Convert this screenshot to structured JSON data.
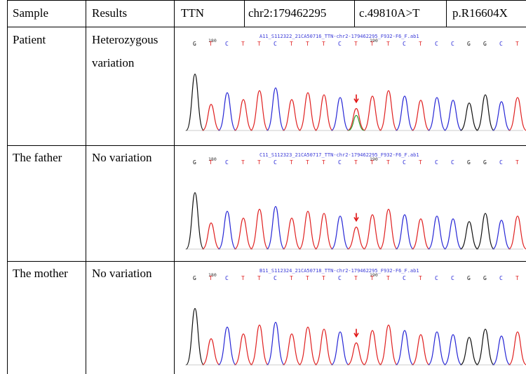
{
  "header": {
    "sample": "Sample",
    "results": "Results",
    "gene": "TTN",
    "locus": "chr2:179462295",
    "cdna": "c.49810A>T",
    "protein": "p.R16604X"
  },
  "rows": [
    {
      "sample": "Patient",
      "result_line1": "Heterozygous",
      "result_line2": "variation",
      "chromatogram": {
        "filename": "A11_S112322_21CA50716_TTN-chr2-179462295_F932-F6_F.ab1",
        "bases": [
          "G",
          "T",
          "C",
          "T",
          "T",
          "C",
          "T",
          "T",
          "T",
          "C",
          "T",
          "T",
          "T",
          "C",
          "T",
          "C",
          "C",
          "G",
          "G",
          "C",
          "T"
        ],
        "pos_labels": [
          "180",
          "190"
        ],
        "heterozygous": true
      }
    },
    {
      "sample": "The father",
      "result_line1": "No variation",
      "result_line2": "",
      "chromatogram": {
        "filename": "C11_S112323_21CA50717_TTN-chr2-179462295_F932-F6_F.ab1",
        "bases": [
          "G",
          "T",
          "C",
          "T",
          "T",
          "C",
          "T",
          "T",
          "T",
          "C",
          "T",
          "T",
          "T",
          "C",
          "T",
          "C",
          "C",
          "G",
          "G",
          "C",
          "T"
        ],
        "pos_labels": [
          "180",
          "190"
        ],
        "heterozygous": false
      }
    },
    {
      "sample": "The mother",
      "result_line1": "No variation",
      "result_line2": "",
      "chromatogram": {
        "filename": "B11_S112324_21CA50718_TTN-chr2-179462295_F932-F6_F.ab1",
        "bases": [
          "G",
          "T",
          "C",
          "T",
          "T",
          "C",
          "T",
          "T",
          "T",
          "C",
          "T",
          "T",
          "T",
          "C",
          "T",
          "C",
          "C",
          "G",
          "G",
          "C",
          "T"
        ],
        "pos_labels": [
          "180",
          "190"
        ],
        "heterozygous": false
      }
    }
  ],
  "colors": {
    "A": "#2e9e2e",
    "C": "#2727d6",
    "G": "#111111",
    "T": "#e02020",
    "arrow": "#e01010"
  }
}
